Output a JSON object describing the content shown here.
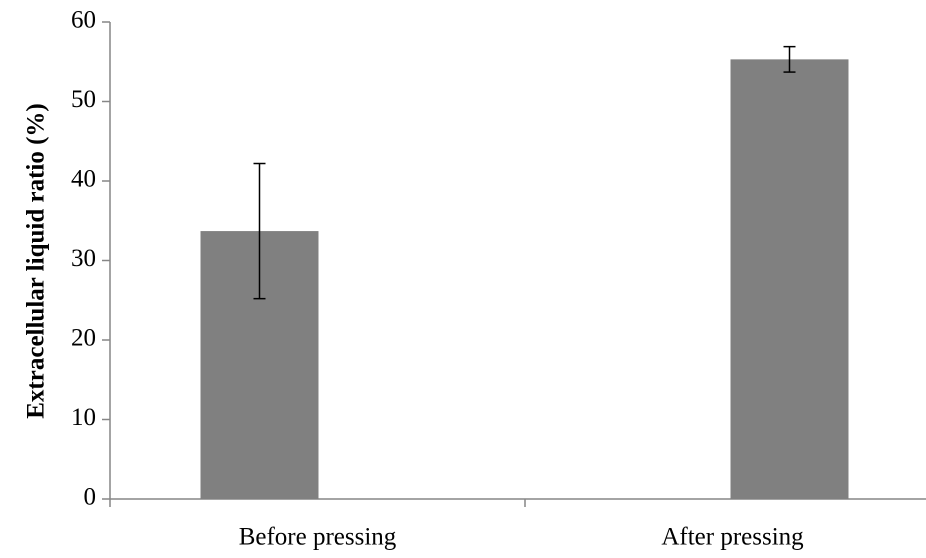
{
  "chart_data": {
    "type": "bar",
    "y_label": "Extracellular liquid ratio (%)",
    "categories": [
      "Before pressing",
      "After pressing"
    ],
    "values": [
      33.7,
      55.3
    ],
    "errors": [
      8.5,
      1.6
    ],
    "color": "#808080",
    "ylim": [
      0,
      60
    ],
    "yticks": [
      0,
      10,
      20,
      30,
      40,
      50,
      60
    ],
    "grid": false
  }
}
